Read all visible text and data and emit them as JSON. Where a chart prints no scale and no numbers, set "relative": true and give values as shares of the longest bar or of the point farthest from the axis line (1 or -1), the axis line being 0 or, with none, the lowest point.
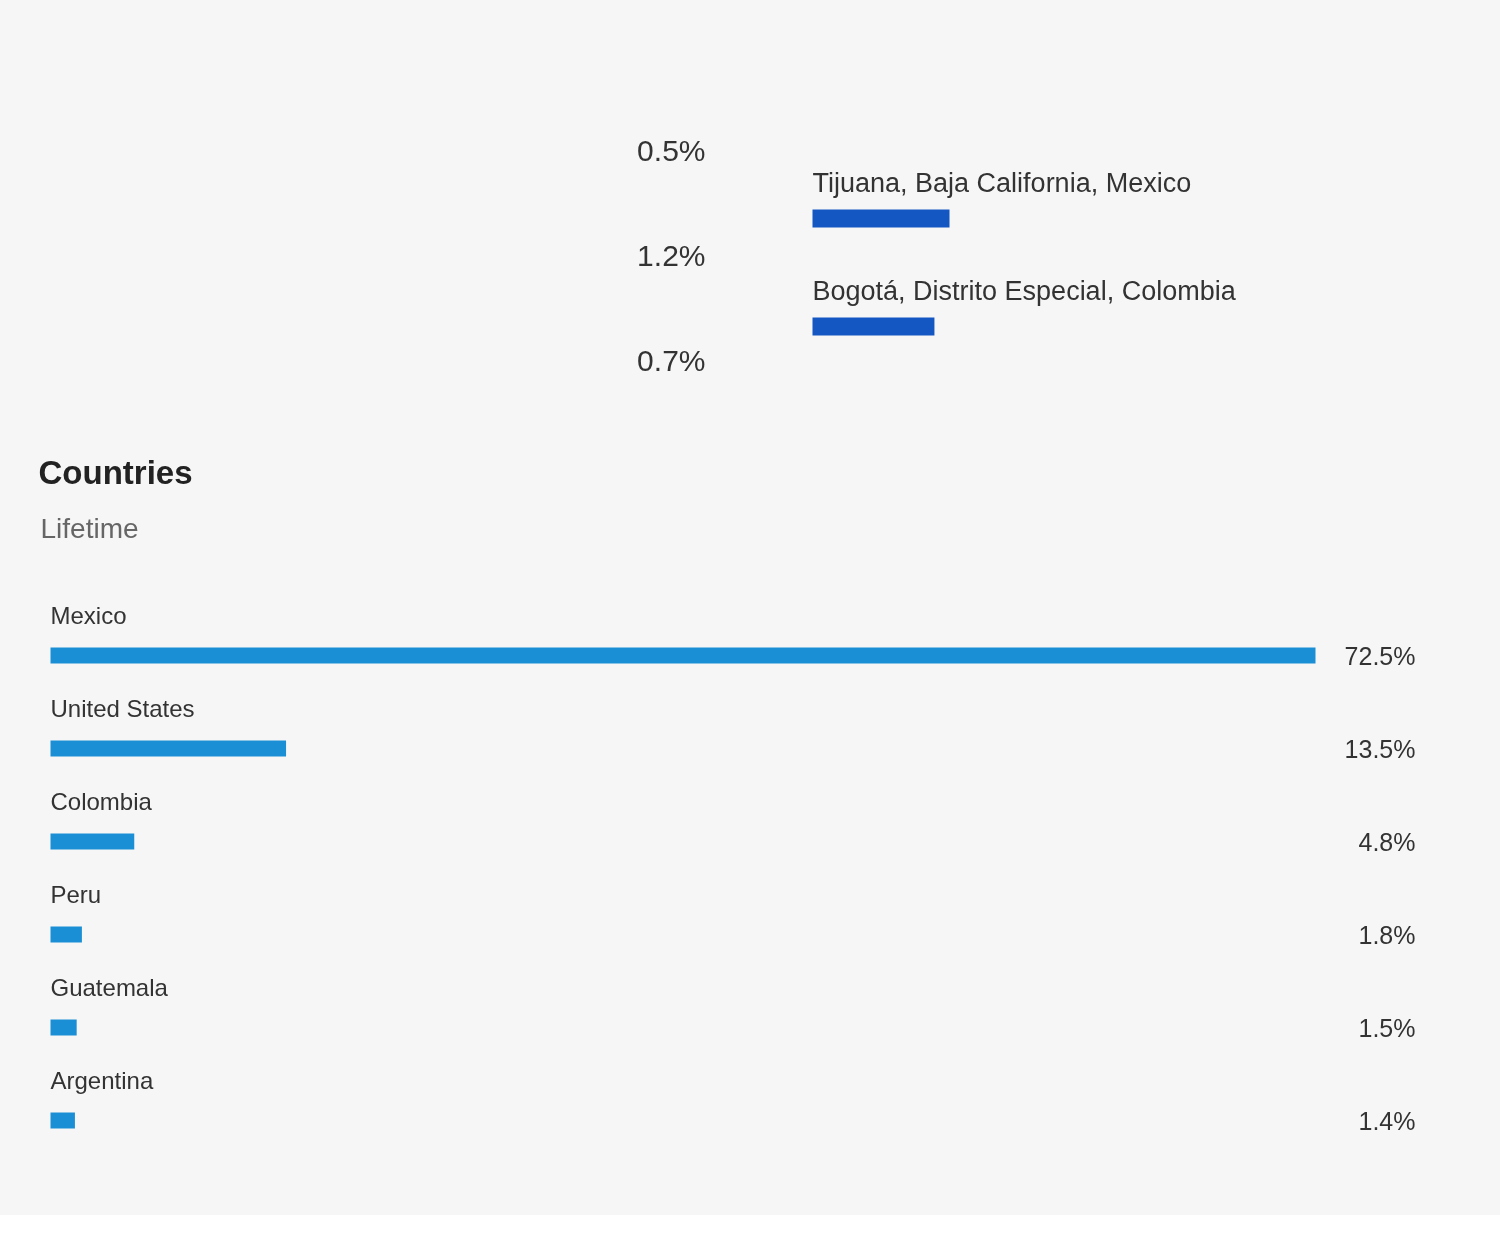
{
  "chart_data": [
    {
      "type": "bar",
      "orientation": "horizontal",
      "relative": true,
      "categories": [
        "Tijuana, Baja California, Mexico",
        "Bogotá, Distrito Especial, Colombia"
      ],
      "values": [
        1,
        0.89
      ],
      "color": "#1456c2",
      "annotations": [
        "0.5%",
        "1.2%",
        "0.7%"
      ]
    },
    {
      "type": "bar",
      "orientation": "horizontal",
      "title": "Countries",
      "subtitle": "Lifetime",
      "categories": [
        "Mexico",
        "United States",
        "Colombia",
        "Peru",
        "Guatemala",
        "Argentina"
      ],
      "values": [
        72.5,
        13.5,
        4.8,
        1.8,
        1.5,
        1.4
      ],
      "color": "#1a8fd6",
      "value_labels": [
        "72.5%",
        "13.5%",
        "4.8%",
        "1.8%",
        "1.5%",
        "1.4%"
      ]
    }
  ]
}
